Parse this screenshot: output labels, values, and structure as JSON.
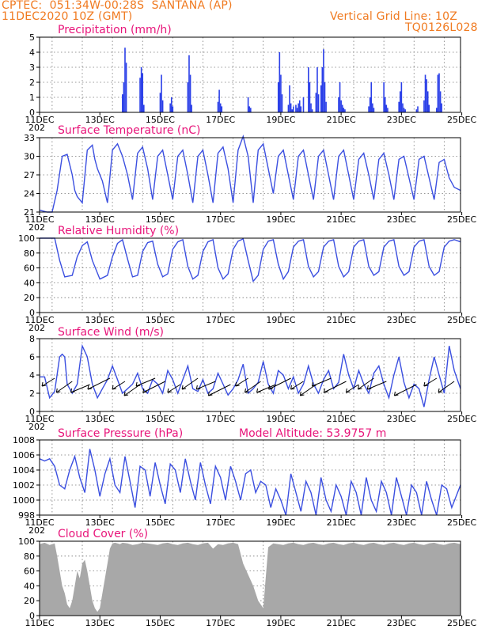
{
  "header": {
    "line1_left": "CPTEC:",
    "line1_coords": "051:34W-00:28S",
    "line1_station": "SANTANA (AP)",
    "line2_left": "11DEC2020 10Z (GMT)",
    "line2_right": "Vertical Grid Line: 10Z",
    "line3_right": "TQ0126L028"
  },
  "model_altitude": "Model Altitude: 53.9757 m",
  "x_tick_labels": [
    "11DEC",
    "13DEC",
    "15DEC",
    "17DEC",
    "19DEC",
    "21DEC",
    "23DEC",
    "25DEC"
  ],
  "year_fragment": "202",
  "colors": {
    "line": "#3b4fe0",
    "bar": "#2a3fe8",
    "cloud": "#a8a8a8",
    "title": "#e8157a",
    "header": "#f07a20"
  },
  "chart_data": [
    {
      "id": "precip",
      "type": "bar",
      "title": "Precipitation (mm/h)",
      "x_unit": "hours since 11DEC 00Z",
      "ylim": [
        0,
        5
      ],
      "yticks": [
        0,
        1,
        2,
        3,
        4,
        5
      ],
      "x": [
        66,
        67,
        68,
        69,
        80,
        81,
        82,
        83,
        96,
        97,
        98,
        104,
        105,
        106,
        118,
        119,
        120,
        121,
        142,
        143,
        144,
        145,
        166,
        167,
        168,
        190,
        191,
        192,
        193,
        198,
        199,
        200,
        201,
        202,
        204,
        205,
        206,
        207,
        208,
        210,
        214,
        215,
        216,
        217,
        220,
        221,
        222,
        224,
        225,
        226,
        227,
        228,
        238,
        239,
        240,
        241,
        242,
        243,
        262,
        263,
        264,
        265,
        266,
        274,
        275,
        276,
        277,
        286,
        287,
        288,
        289,
        290,
        291,
        300,
        301,
        306,
        307,
        308,
        309,
        310,
        316,
        317,
        318,
        319,
        320
      ],
      "values": [
        1.2,
        2.0,
        4.3,
        3.3,
        2.3,
        3.0,
        2.6,
        0.5,
        1.3,
        2.5,
        0.8,
        0.6,
        1.0,
        0.4,
        2.0,
        3.8,
        2.5,
        0.5,
        0.7,
        1.5,
        0.6,
        0.4,
        1.0,
        0.4,
        0.3,
        2.0,
        4.0,
        2.5,
        1.2,
        0.5,
        1.8,
        0.6,
        0.2,
        0.4,
        0.5,
        0.3,
        0.6,
        0.8,
        0.4,
        1.0,
        3.0,
        2.0,
        0.6,
        0.2,
        1.3,
        3.0,
        1.2,
        1.8,
        3.0,
        4.2,
        2.0,
        0.7,
        1.0,
        2.0,
        0.8,
        0.5,
        0.3,
        0.2,
        0.4,
        1.0,
        2.0,
        0.6,
        0.3,
        2.0,
        1.0,
        0.5,
        0.3,
        0.7,
        1.4,
        2.0,
        0.6,
        0.3,
        0.2,
        0.2,
        0.4,
        0.8,
        2.5,
        2.2,
        1.4,
        0.5,
        0.3,
        2.5,
        2.6,
        1.4,
        0.6
      ]
    },
    {
      "id": "temp",
      "type": "line",
      "title": "Surface Temperature (nC)",
      "x_unit": "hours since 11DEC 00Z",
      "ylim": [
        21,
        33
      ],
      "yticks": [
        21,
        24,
        27,
        30,
        33
      ],
      "x": [
        0,
        6,
        10,
        14,
        18,
        22,
        26,
        28,
        30,
        34,
        38,
        42,
        44,
        46,
        50,
        54,
        58,
        62,
        66,
        70,
        74,
        78,
        82,
        86,
        90,
        94,
        98,
        102,
        106,
        110,
        114,
        118,
        122,
        126,
        130,
        134,
        138,
        142,
        146,
        150,
        154,
        158,
        162,
        166,
        170,
        174,
        178,
        182,
        186,
        190,
        194,
        198,
        202,
        206,
        210,
        214,
        218,
        222,
        226,
        230,
        234,
        238,
        242,
        246,
        250,
        254,
        258,
        262,
        266,
        270,
        274,
        278,
        282,
        286,
        290,
        294,
        298,
        302,
        306,
        310,
        314,
        318,
        322,
        326,
        330,
        335
      ],
      "y": [
        21.3,
        21.0,
        21.0,
        24.5,
        30.0,
        30.3,
        27.0,
        24.5,
        23.5,
        22.5,
        31.0,
        31.8,
        29.5,
        28.0,
        26.0,
        22.5,
        31.0,
        32.0,
        30.0,
        27.0,
        23.0,
        30.5,
        31.5,
        28.0,
        23.0,
        30.0,
        31.0,
        27.0,
        23.0,
        30.0,
        31.0,
        27.0,
        22.5,
        30.0,
        31.0,
        27.0,
        22.5,
        30.5,
        31.5,
        28.0,
        22.5,
        31.0,
        33.2,
        30.0,
        22.5,
        31.0,
        32.0,
        28.0,
        24.0,
        30.0,
        31.0,
        27.0,
        23.0,
        30.0,
        31.0,
        27.0,
        23.0,
        30.0,
        31.0,
        27.0,
        23.0,
        30.0,
        31.0,
        27.0,
        23.0,
        29.5,
        30.5,
        27.0,
        23.0,
        29.5,
        30.5,
        27.0,
        23.0,
        29.5,
        30.0,
        26.5,
        23.0,
        29.5,
        30.0,
        26.5,
        23.0,
        29.0,
        29.5,
        26.5,
        25.0,
        24.5
      ]
    },
    {
      "id": "rh",
      "type": "line",
      "title": "Relative Humidity (%)",
      "x_unit": "hours since 11DEC 00Z",
      "ylim": [
        0,
        100
      ],
      "yticks": [
        0,
        20,
        40,
        60,
        80,
        100
      ],
      "x": [
        0,
        6,
        12,
        16,
        20,
        26,
        30,
        34,
        38,
        42,
        48,
        54,
        58,
        62,
        66,
        70,
        74,
        78,
        82,
        86,
        90,
        94,
        98,
        102,
        106,
        110,
        114,
        118,
        122,
        126,
        130,
        134,
        138,
        142,
        146,
        150,
        154,
        158,
        162,
        166,
        170,
        174,
        178,
        182,
        186,
        190,
        194,
        198,
        202,
        206,
        210,
        214,
        218,
        222,
        226,
        230,
        234,
        238,
        242,
        246,
        250,
        254,
        258,
        262,
        266,
        270,
        274,
        278,
        282,
        286,
        290,
        294,
        298,
        302,
        306,
        310,
        314,
        318,
        322,
        326,
        330,
        335
      ],
      "y": [
        100,
        100,
        100,
        70,
        48,
        50,
        75,
        90,
        95,
        70,
        45,
        50,
        75,
        93,
        98,
        72,
        48,
        50,
        82,
        94,
        96,
        65,
        48,
        52,
        85,
        95,
        98,
        62,
        45,
        50,
        82,
        95,
        98,
        60,
        45,
        52,
        85,
        96,
        99,
        70,
        42,
        50,
        85,
        96,
        98,
        65,
        45,
        55,
        88,
        96,
        98,
        62,
        48,
        55,
        88,
        96,
        98,
        62,
        48,
        55,
        88,
        96,
        98,
        62,
        50,
        55,
        88,
        96,
        98,
        62,
        50,
        55,
        88,
        96,
        98,
        62,
        50,
        55,
        88,
        96,
        98,
        95
      ]
    },
    {
      "id": "wind",
      "type": "line",
      "title": "Surface Wind (m/s)",
      "x_unit": "hours since 11DEC 00Z",
      "ylim": [
        0,
        8
      ],
      "yticks": [
        0,
        2,
        4,
        6,
        8
      ],
      "x": [
        0,
        4,
        8,
        12,
        16,
        18,
        20,
        22,
        26,
        30,
        34,
        38,
        42,
        46,
        50,
        54,
        58,
        62,
        66,
        70,
        74,
        78,
        82,
        86,
        90,
        94,
        98,
        102,
        106,
        110,
        114,
        118,
        122,
        126,
        130,
        134,
        138,
        142,
        146,
        150,
        154,
        158,
        162,
        166,
        170,
        174,
        178,
        182,
        186,
        190,
        194,
        198,
        202,
        206,
        210,
        214,
        218,
        222,
        226,
        230,
        234,
        238,
        242,
        246,
        250,
        254,
        258,
        262,
        266,
        270,
        274,
        278,
        282,
        286,
        290,
        294,
        298,
        302,
        306,
        310,
        314,
        318,
        322,
        326,
        330,
        335
      ],
      "y": [
        3.8,
        3.8,
        1.5,
        2.2,
        6.0,
        6.3,
        6.0,
        3.0,
        2.0,
        3.0,
        7.2,
        6.0,
        3.0,
        1.5,
        2.5,
        3.5,
        5.0,
        3.5,
        2.0,
        2.5,
        3.0,
        4.2,
        2.5,
        2.0,
        3.5,
        3.0,
        2.0,
        4.5,
        3.5,
        2.0,
        3.5,
        5.0,
        2.5,
        2.2,
        3.5,
        2.0,
        2.5,
        4.2,
        3.0,
        1.8,
        2.5,
        3.5,
        5.2,
        2.0,
        2.5,
        3.2,
        5.5,
        3.0,
        2.0,
        4.5,
        4.0,
        2.5,
        3.8,
        2.0,
        3.0,
        5.0,
        3.0,
        2.0,
        3.5,
        4.5,
        2.5,
        3.2,
        6.3,
        4.0,
        2.5,
        4.5,
        3.0,
        2.0,
        4.2,
        5.0,
        3.0,
        1.5,
        4.0,
        6.0,
        3.2,
        1.5,
        3.0,
        2.5,
        0.5,
        3.5,
        6.0,
        4.0,
        2.0,
        7.2,
        4.5,
        2.5
      ]
    },
    {
      "id": "pres",
      "type": "line",
      "title": "Surface Pressure (hPa)",
      "x_unit": "hours since 11DEC 00Z",
      "ylim": [
        998,
        1008
      ],
      "yticks": [
        998,
        1000,
        1002,
        1004,
        1006,
        1008
      ],
      "x": [
        0,
        4,
        8,
        12,
        16,
        20,
        24,
        28,
        32,
        36,
        40,
        44,
        48,
        52,
        56,
        60,
        64,
        68,
        72,
        76,
        80,
        84,
        88,
        92,
        96,
        100,
        104,
        108,
        112,
        116,
        120,
        124,
        128,
        132,
        136,
        140,
        144,
        148,
        152,
        156,
        160,
        164,
        168,
        172,
        176,
        180,
        184,
        188,
        192,
        196,
        200,
        204,
        208,
        212,
        216,
        220,
        224,
        228,
        232,
        236,
        240,
        244,
        248,
        252,
        256,
        260,
        264,
        268,
        272,
        276,
        280,
        284,
        288,
        292,
        296,
        300,
        304,
        308,
        312,
        316,
        320,
        324,
        328,
        335
      ],
      "y": [
        1005.5,
        1005.2,
        1005.5,
        1004.5,
        1002.0,
        1001.5,
        1004.0,
        1005.8,
        1003.0,
        1001.0,
        1006.8,
        1004.0,
        1000.5,
        1003.5,
        1005.5,
        1002.0,
        1001.0,
        1005.8,
        1002.5,
        999.0,
        1004.5,
        1004.0,
        1000.5,
        1005.0,
        1002.0,
        999.5,
        1004.8,
        1004.0,
        1001.0,
        1005.5,
        1002.5,
        1000.0,
        1005.0,
        1002.0,
        999.5,
        1004.5,
        1003.0,
        1000.0,
        1004.5,
        1002.5,
        1000.0,
        1003.5,
        1004.0,
        1001.0,
        1002.5,
        1002.0,
        999.0,
        1001.5,
        1000.0,
        998.0,
        1003.5,
        1001.0,
        998.5,
        1002.5,
        1001.0,
        998.0,
        1003.0,
        1000.0,
        998.5,
        1002.0,
        1000.5,
        998.0,
        1002.5,
        1001.0,
        998.0,
        1003.0,
        1000.0,
        998.5,
        1002.5,
        1001.0,
        998.0,
        1003.0,
        1000.5,
        998.0,
        1002.0,
        1001.0,
        998.0,
        1002.5,
        1000.0,
        998.0,
        1002.0,
        1001.5,
        999.0,
        1002.0
      ]
    },
    {
      "id": "cloud",
      "type": "area",
      "title": "Cloud Cover (%)",
      "x_unit": "hours since 11DEC 00Z",
      "ylim": [
        0,
        100
      ],
      "yticks": [
        0,
        20,
        40,
        60,
        80,
        100
      ],
      "x": [
        0,
        4,
        8,
        12,
        14,
        16,
        18,
        20,
        22,
        24,
        26,
        28,
        30,
        32,
        34,
        36,
        38,
        40,
        42,
        44,
        46,
        48,
        50,
        52,
        54,
        56,
        58,
        60,
        62,
        64,
        66,
        70,
        74,
        78,
        82,
        86,
        90,
        94,
        98,
        102,
        106,
        110,
        114,
        118,
        122,
        126,
        130,
        134,
        138,
        142,
        146,
        150,
        154,
        158,
        162,
        166,
        170,
        174,
        178,
        182,
        186,
        190,
        194,
        198,
        202,
        206,
        210,
        214,
        218,
        222,
        226,
        230,
        234,
        238,
        242,
        246,
        250,
        254,
        258,
        262,
        266,
        270,
        274,
        278,
        282,
        286,
        290,
        294,
        298,
        302,
        306,
        310,
        314,
        318,
        322,
        326,
        330,
        335
      ],
      "y": [
        96,
        98,
        95,
        97,
        80,
        60,
        40,
        30,
        15,
        10,
        20,
        40,
        60,
        50,
        70,
        75,
        60,
        40,
        20,
        10,
        5,
        10,
        30,
        50,
        70,
        90,
        97,
        98,
        97,
        96,
        98,
        97,
        95,
        96,
        98,
        97,
        96,
        95,
        97,
        98,
        96,
        95,
        97,
        98,
        96,
        95,
        97,
        98,
        90,
        96,
        95,
        97,
        98,
        96,
        70,
        55,
        40,
        20,
        10,
        92,
        97,
        96,
        95,
        97,
        98,
        96,
        95,
        97,
        98,
        96,
        95,
        97,
        98,
        96,
        95,
        97,
        98,
        96,
        95,
        97,
        98,
        96,
        95,
        97,
        98,
        96,
        95,
        97,
        98,
        96,
        95,
        97,
        98,
        96,
        95,
        97,
        98,
        96
      ]
    }
  ]
}
